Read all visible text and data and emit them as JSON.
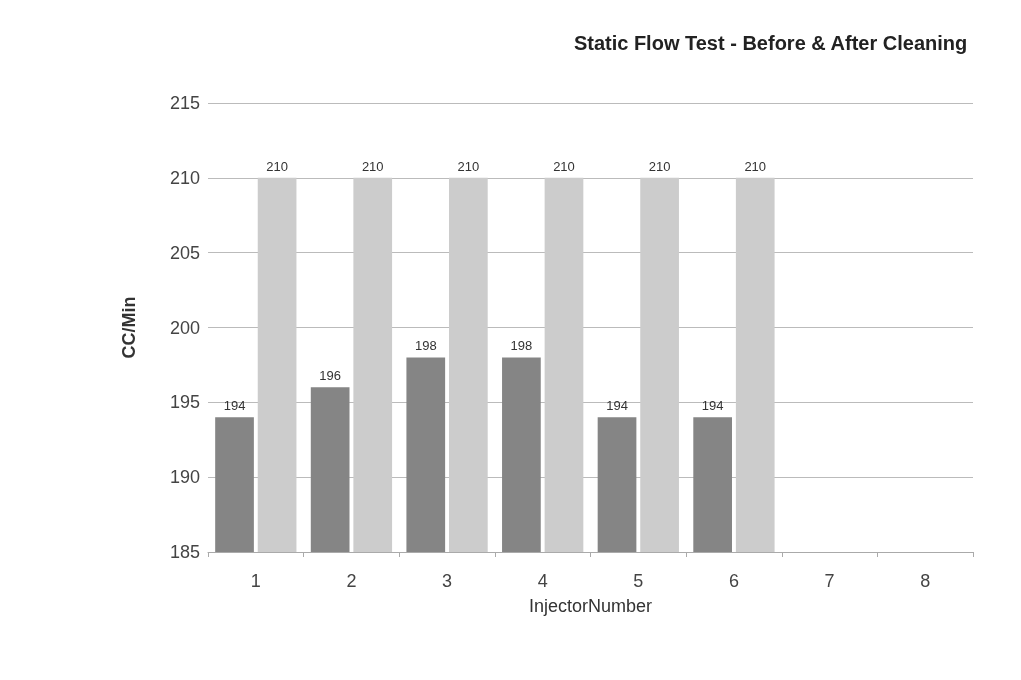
{
  "chart_data": {
    "type": "bar",
    "title": "Static Flow Test - Before & After Cleaning",
    "xlabel": "InjectorNumber",
    "ylabel": "CC/Min",
    "categories": [
      "1",
      "2",
      "3",
      "4",
      "5",
      "6",
      "7",
      "8"
    ],
    "series": [
      {
        "color": "#858585",
        "values": [
          194,
          196,
          198,
          198,
          194,
          194,
          null,
          null
        ]
      },
      {
        "color": "#cccccc",
        "values": [
          210,
          210,
          210,
          210,
          210,
          210,
          null,
          null
        ]
      }
    ],
    "ylim": [
      185,
      215
    ],
    "yticks": [
      185,
      190,
      195,
      200,
      205,
      210,
      215
    ],
    "grid": "y",
    "data_labels": true
  }
}
